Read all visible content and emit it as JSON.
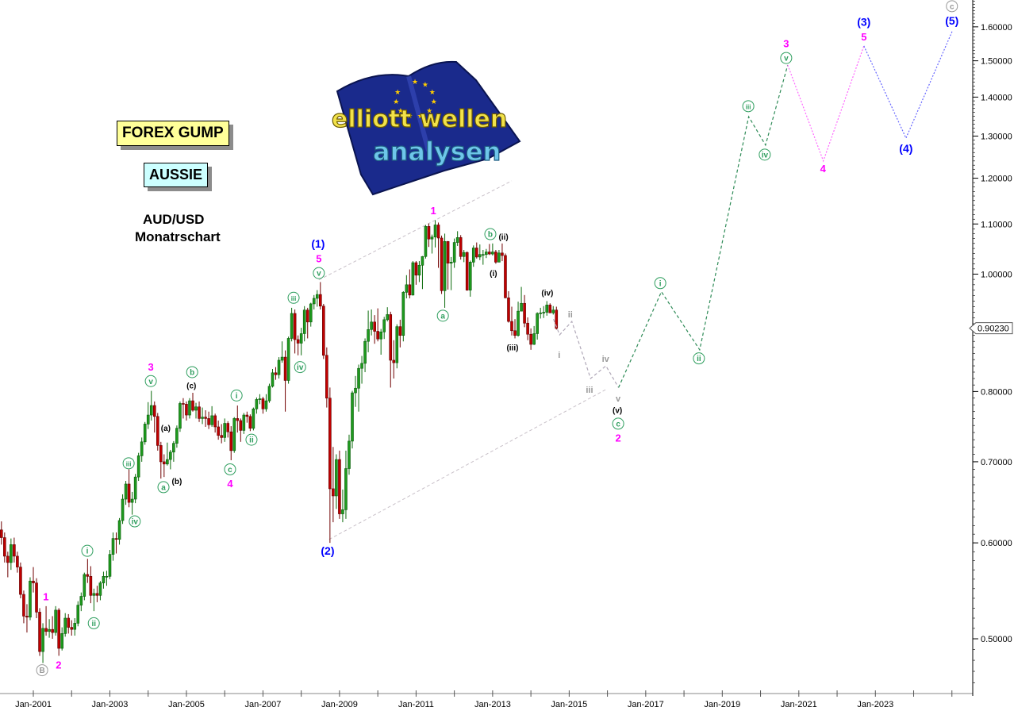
{
  "header": {
    "brand_box": "FOREX GUMP",
    "nickname_box": "AUSSIE",
    "symbol": "AUD/USD",
    "timeframe": "Monatrschart"
  },
  "logo": {
    "line1": "elliott wellen",
    "line2": "analysen",
    "flag_color": "#1a2a8c",
    "star_color": "#ffcc00"
  },
  "chart_data": {
    "type": "candlestick",
    "title": "",
    "y_scale": "log",
    "ylim": [
      0.455,
      1.7
    ],
    "xlim": [
      2000.0,
      2025.5
    ],
    "grid": false,
    "x_ticks": [
      "Jan-2001",
      "Jan-2003",
      "Jan-2005",
      "Jan-2007",
      "Jan-2009",
      "Jan-2011",
      "Jan-2013",
      "Jan-2015",
      "Jan-2017",
      "Jan-2019",
      "Jan-2021",
      "Jan-2023"
    ],
    "y_ticks": [
      "0.50000",
      "0.60000",
      "0.70000",
      "0.80000",
      "0.90000",
      "1.00000",
      "1.10000",
      "1.20000",
      "1.30000",
      "1.40000",
      "1.50000",
      "1.60000"
    ],
    "y_tick_values": [
      0.5,
      0.6,
      0.7,
      0.8,
      0.9,
      1.0,
      1.1,
      1.2,
      1.3,
      1.4,
      1.5,
      1.6
    ],
    "current_price": "0.90230",
    "colors": {
      "up": "#1e9a1e",
      "down": "#c00000"
    },
    "candles": {
      "interval": "monthly",
      "start": "2000-03",
      "first_open": 0.615,
      "close": [
        0.606,
        0.585,
        0.578,
        0.598,
        0.585,
        0.573,
        0.544,
        0.522,
        0.521,
        0.558,
        0.556,
        0.526,
        0.488,
        0.51,
        0.507,
        0.509,
        0.506,
        0.528,
        0.491,
        0.505,
        0.52,
        0.511,
        0.509,
        0.515,
        0.533,
        0.542,
        0.565,
        0.563,
        0.543,
        0.545,
        0.543,
        0.556,
        0.563,
        0.563,
        0.587,
        0.605,
        0.604,
        0.626,
        0.652,
        0.671,
        0.648,
        0.652,
        0.68,
        0.708,
        0.727,
        0.752,
        0.765,
        0.779,
        0.763,
        0.722,
        0.7,
        0.697,
        0.703,
        0.713,
        0.725,
        0.746,
        0.782,
        0.781,
        0.765,
        0.786,
        0.772,
        0.777,
        0.76,
        0.762,
        0.76,
        0.751,
        0.764,
        0.748,
        0.736,
        0.733,
        0.753,
        0.741,
        0.715,
        0.76,
        0.757,
        0.743,
        0.765,
        0.763,
        0.746,
        0.774,
        0.788,
        0.789,
        0.774,
        0.786,
        0.808,
        0.829,
        0.826,
        0.849,
        0.854,
        0.817,
        0.885,
        0.928,
        0.883,
        0.877,
        0.893,
        0.934,
        0.913,
        0.945,
        0.955,
        0.962,
        0.941,
        0.857,
        0.79,
        0.665,
        0.656,
        0.703,
        0.634,
        0.639,
        0.691,
        0.728,
        0.798,
        0.805,
        0.836,
        0.844,
        0.88,
        0.9,
        0.913,
        0.897,
        0.884,
        0.896,
        0.917,
        0.926,
        0.849,
        0.845,
        0.905,
        0.89,
        0.966,
        0.98,
        0.961,
        1.022,
        0.998,
        1.017,
        1.034,
        1.095,
        1.069,
        1.073,
        1.098,
        1.071,
        0.969,
        1.064,
        1.021,
        1.023,
        1.062,
        1.072,
        1.034,
        1.042,
        0.97,
        1.023,
        1.051,
        1.033,
        1.038,
        1.038,
        1.043,
        1.039,
        1.043,
        1.023,
        1.041,
        1.036,
        0.956,
        0.914,
        0.898,
        0.89,
        0.932,
        0.946,
        0.911,
        0.892,
        0.875,
        0.893,
        0.928,
        0.929,
        0.93,
        0.943,
        0.929,
        0.934,
        0.902
      ],
      "high": [
        0.625,
        0.612,
        0.59,
        0.605,
        0.606,
        0.59,
        0.578,
        0.548,
        0.534,
        0.562,
        0.573,
        0.561,
        0.53,
        0.515,
        0.532,
        0.519,
        0.522,
        0.532,
        0.53,
        0.511,
        0.525,
        0.524,
        0.518,
        0.52,
        0.537,
        0.546,
        0.567,
        0.582,
        0.574,
        0.55,
        0.553,
        0.558,
        0.568,
        0.569,
        0.592,
        0.612,
        0.612,
        0.629,
        0.658,
        0.675,
        0.69,
        0.661,
        0.684,
        0.712,
        0.733,
        0.755,
        0.784,
        0.801,
        0.785,
        0.768,
        0.727,
        0.71,
        0.726,
        0.716,
        0.728,
        0.75,
        0.785,
        0.79,
        0.785,
        0.79,
        0.798,
        0.783,
        0.785,
        0.776,
        0.772,
        0.77,
        0.778,
        0.767,
        0.757,
        0.752,
        0.76,
        0.756,
        0.749,
        0.762,
        0.779,
        0.76,
        0.768,
        0.77,
        0.766,
        0.776,
        0.791,
        0.796,
        0.792,
        0.796,
        0.812,
        0.835,
        0.838,
        0.854,
        0.88,
        0.865,
        0.888,
        0.938,
        0.935,
        0.89,
        0.903,
        0.941,
        0.938,
        0.947,
        0.961,
        0.97,
        0.985,
        0.945,
        0.87,
        0.806,
        0.72,
        0.71,
        0.715,
        0.664,
        0.715,
        0.737,
        0.801,
        0.824,
        0.842,
        0.856,
        0.885,
        0.933,
        0.935,
        0.925,
        0.937,
        0.901,
        0.922,
        0.939,
        0.931,
        0.882,
        0.909,
        0.917,
        0.968,
        0.998,
        1.009,
        1.025,
        1.025,
        1.025,
        1.035,
        1.098,
        1.101,
        1.078,
        1.108,
        1.103,
        1.076,
        1.08,
        1.065,
        1.033,
        1.07,
        1.085,
        1.077,
        1.047,
        1.044,
        1.026,
        1.056,
        1.062,
        1.058,
        1.047,
        1.049,
        1.059,
        1.06,
        1.047,
        1.047,
        1.06,
        1.04,
        0.968,
        0.94,
        0.918,
        0.949,
        0.976,
        0.961,
        0.921,
        0.902,
        0.906,
        0.93,
        0.938,
        0.941,
        0.95,
        0.946,
        0.941,
        0.94
      ],
      "low": [
        0.598,
        0.578,
        0.562,
        0.57,
        0.578,
        0.567,
        0.54,
        0.515,
        0.506,
        0.518,
        0.546,
        0.52,
        0.484,
        0.4775,
        0.503,
        0.501,
        0.5,
        0.503,
        0.4841,
        0.489,
        0.502,
        0.505,
        0.503,
        0.503,
        0.512,
        0.527,
        0.538,
        0.556,
        0.535,
        0.527,
        0.536,
        0.538,
        0.55,
        0.553,
        0.56,
        0.58,
        0.588,
        0.598,
        0.622,
        0.645,
        0.642,
        0.633,
        0.647,
        0.675,
        0.7,
        0.723,
        0.745,
        0.757,
        0.74,
        0.715,
        0.678,
        0.68,
        0.695,
        0.69,
        0.7,
        0.719,
        0.741,
        0.76,
        0.757,
        0.76,
        0.77,
        0.76,
        0.755,
        0.752,
        0.748,
        0.745,
        0.748,
        0.74,
        0.73,
        0.725,
        0.727,
        0.733,
        0.702,
        0.712,
        0.74,
        0.727,
        0.738,
        0.754,
        0.742,
        0.743,
        0.767,
        0.781,
        0.767,
        0.77,
        0.783,
        0.806,
        0.818,
        0.82,
        0.845,
        0.77,
        0.812,
        0.88,
        0.86,
        0.857,
        0.857,
        0.88,
        0.885,
        0.905,
        0.935,
        0.94,
        0.935,
        0.851,
        0.776,
        0.6,
        0.624,
        0.64,
        0.628,
        0.624,
        0.628,
        0.683,
        0.718,
        0.777,
        0.77,
        0.812,
        0.83,
        0.862,
        0.89,
        0.876,
        0.88,
        0.858,
        0.884,
        0.914,
        0.806,
        0.82,
        0.836,
        0.87,
        0.88,
        0.955,
        0.955,
        0.96,
        0.98,
        0.985,
        0.972,
        1.03,
        1.053,
        1.04,
        1.052,
        1.012,
        0.963,
        0.938,
        0.971,
        0.97,
        1.012,
        1.055,
        1.028,
        1.023,
        0.969,
        0.958,
        1.014,
        1.03,
        1.027,
        1.018,
        1.031,
        1.037,
        1.036,
        1.02,
        1.023,
        1.025,
        0.955,
        0.912,
        0.89,
        0.885,
        0.888,
        0.932,
        0.904,
        0.882,
        0.866,
        0.874,
        0.883,
        0.919,
        0.92,
        0.924,
        0.929,
        0.926,
        0.9
      ]
    },
    "projections": [
      {
        "color": "#b0a8b8",
        "style": "dashed",
        "points": [
          [
            2014.59,
            0.918
          ],
          [
            2014.75,
            0.891
          ],
          [
            2015.07,
            0.914
          ],
          [
            2015.56,
            0.82
          ],
          [
            2015.96,
            0.84
          ],
          [
            2016.29,
            0.806
          ]
        ]
      },
      {
        "color": "#2e8b57",
        "style": "dashed",
        "points": [
          [
            2016.29,
            0.806
          ],
          [
            2017.41,
            0.967
          ],
          [
            2018.41,
            0.866
          ],
          [
            2019.69,
            1.349
          ],
          [
            2020.13,
            1.278
          ],
          [
            2020.71,
            1.488
          ]
        ]
      },
      {
        "color": "#ff66ff",
        "style": "dotted",
        "points": [
          [
            2020.71,
            1.488
          ],
          [
            2021.64,
            1.24
          ],
          [
            2022.7,
            1.543
          ]
        ]
      },
      {
        "color": "#6666ff",
        "style": "dotted",
        "points": [
          [
            2022.7,
            1.543
          ],
          [
            2023.8,
            1.295
          ],
          [
            2025.02,
            1.59
          ]
        ]
      }
    ],
    "channel_lines": [
      {
        "color": "#c8c0c8",
        "points": [
          [
            2008.46,
            0.989
          ],
          [
            2013.5,
            1.194
          ]
        ]
      },
      {
        "color": "#c8c0c8",
        "points": [
          [
            2008.73,
            0.604
          ],
          [
            2015.99,
            0.804
          ]
        ]
      }
    ],
    "wave_labels": [
      {
        "text": "B",
        "x": 2001.23,
        "y": 0.471,
        "color": "#999999",
        "circled": true
      },
      {
        "text": "1",
        "x": 2001.33,
        "y": 0.542,
        "color": "#ff00ff"
      },
      {
        "text": "2",
        "x": 2001.66,
        "y": 0.476,
        "color": "#ff00ff"
      },
      {
        "text": "i",
        "x": 2002.41,
        "y": 0.591,
        "color": "#2e9e5e",
        "circled": true
      },
      {
        "text": "ii",
        "x": 2002.58,
        "y": 0.515,
        "color": "#2e9e5e",
        "circled": true
      },
      {
        "text": "iii",
        "x": 2003.49,
        "y": 0.698,
        "color": "#2e9e5e",
        "circled": true
      },
      {
        "text": "iv",
        "x": 2003.65,
        "y": 0.625,
        "color": "#2e9e5e",
        "circled": true
      },
      {
        "text": "v",
        "x": 2004.07,
        "y": 0.816,
        "color": "#2e9e5e",
        "circled": true
      },
      {
        "text": "3",
        "x": 2004.07,
        "y": 0.836,
        "color": "#ff00ff"
      },
      {
        "text": "(a)",
        "x": 2004.46,
        "y": 0.748,
        "color": "#000000"
      },
      {
        "text": "a",
        "x": 2004.4,
        "y": 0.667,
        "color": "#2e9e5e",
        "circled": true
      },
      {
        "text": "(b)",
        "x": 2004.63,
        "y": 0.676,
        "color": "#000000"
      },
      {
        "text": "b",
        "x": 2005.15,
        "y": 0.83,
        "color": "#2e9e5e",
        "circled": true
      },
      {
        "text": "(c)",
        "x": 2005.13,
        "y": 0.811,
        "color": "#000000"
      },
      {
        "text": "c",
        "x": 2006.14,
        "y": 0.69,
        "color": "#2e9e5e",
        "circled": true
      },
      {
        "text": "4",
        "x": 2006.14,
        "y": 0.675,
        "color": "#ff00ff"
      },
      {
        "text": "i",
        "x": 2006.31,
        "y": 0.794,
        "color": "#2e9e5e",
        "circled": true
      },
      {
        "text": "ii",
        "x": 2006.7,
        "y": 0.73,
        "color": "#2e9e5e",
        "circled": true
      },
      {
        "text": "iii",
        "x": 2007.8,
        "y": 0.956,
        "color": "#2e9e5e",
        "circled": true
      },
      {
        "text": "iv",
        "x": 2007.97,
        "y": 0.838,
        "color": "#2e9e5e",
        "circled": true
      },
      {
        "text": "v",
        "x": 2008.46,
        "y": 1.002,
        "color": "#2e9e5e",
        "circled": true
      },
      {
        "text": "5",
        "x": 2008.46,
        "y": 1.027,
        "color": "#ff00ff"
      },
      {
        "text": "(1)",
        "x": 2008.44,
        "y": 1.05,
        "color": "#0000ff"
      },
      {
        "text": "(2)",
        "x": 2008.69,
        "y": 0.591,
        "color": "#0000ff"
      },
      {
        "text": "1",
        "x": 2011.45,
        "y": 1.129,
        "color": "#ff00ff"
      },
      {
        "text": "a",
        "x": 2011.7,
        "y": 0.924,
        "color": "#2e9e5e",
        "circled": true
      },
      {
        "text": "b",
        "x": 2012.94,
        "y": 1.079,
        "color": "#2e9e5e",
        "circled": true
      },
      {
        "text": "(ii)",
        "x": 2013.19,
        "y": 1.076,
        "color": "#000000"
      },
      {
        "text": "(i)",
        "x": 2013.02,
        "y": 1.004,
        "color": "#000000"
      },
      {
        "text": "(iii)",
        "x": 2013.52,
        "y": 0.872,
        "color": "#000000"
      },
      {
        "text": "(iv)",
        "x": 2014.43,
        "y": 0.967,
        "color": "#000000"
      },
      {
        "text": "i",
        "x": 2014.74,
        "y": 0.859,
        "color": "#999999"
      },
      {
        "text": "ii",
        "x": 2015.03,
        "y": 0.928,
        "color": "#999999"
      },
      {
        "text": "iii",
        "x": 2015.53,
        "y": 0.804,
        "color": "#999999"
      },
      {
        "text": "iv",
        "x": 2015.95,
        "y": 0.853,
        "color": "#999999"
      },
      {
        "text": "v",
        "x": 2016.28,
        "y": 0.791,
        "color": "#999999"
      },
      {
        "text": "(v)",
        "x": 2016.26,
        "y": 0.775,
        "color": "#000000"
      },
      {
        "text": "c",
        "x": 2016.28,
        "y": 0.759,
        "color": "#2e9e5e",
        "circled": true
      },
      {
        "text": "2",
        "x": 2016.28,
        "y": 0.741,
        "color": "#ff00ff"
      },
      {
        "text": "i",
        "x": 2017.38,
        "y": 0.983,
        "color": "#2e9e5e",
        "circled": true
      },
      {
        "text": "ii",
        "x": 2018.39,
        "y": 0.852,
        "color": "#2e9e5e",
        "circled": true
      },
      {
        "text": "iii",
        "x": 2019.68,
        "y": 1.376,
        "color": "#2e9e5e",
        "circled": true
      },
      {
        "text": "iv",
        "x": 2020.11,
        "y": 1.255,
        "color": "#2e9e5e",
        "circled": true
      },
      {
        "text": "v",
        "x": 2020.67,
        "y": 1.508,
        "color": "#2e9e5e",
        "circled": true
      },
      {
        "text": "3",
        "x": 2020.67,
        "y": 1.543,
        "color": "#ff00ff"
      },
      {
        "text": "4",
        "x": 2021.63,
        "y": 1.223,
        "color": "#ff00ff"
      },
      {
        "text": "5",
        "x": 2022.7,
        "y": 1.571,
        "color": "#ff00ff"
      },
      {
        "text": "(3)",
        "x": 2022.7,
        "y": 1.607,
        "color": "#0000ff"
      },
      {
        "text": "(4)",
        "x": 2023.8,
        "y": 1.27,
        "color": "#0000ff"
      },
      {
        "text": "(5)",
        "x": 2025.0,
        "y": 1.619,
        "color": "#0000ff"
      },
      {
        "text": "c",
        "x": 2025.0,
        "y": 1.664,
        "color": "#999999",
        "circled": true
      }
    ]
  }
}
